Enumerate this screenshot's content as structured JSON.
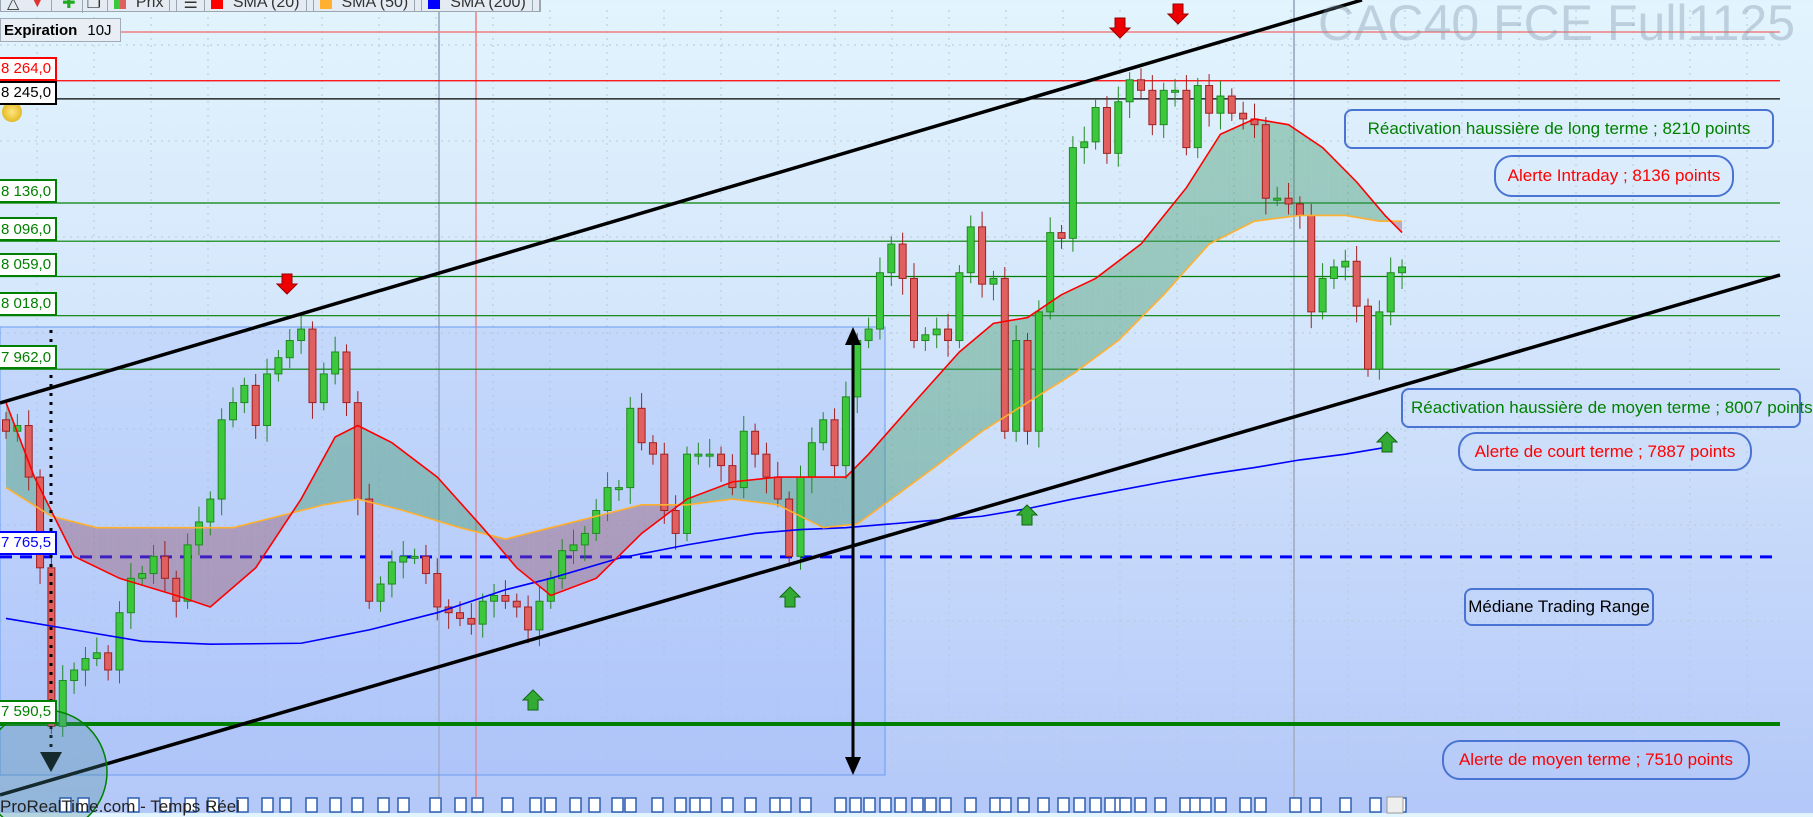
{
  "toolbar": {
    "price_label": "Prix",
    "sma20_label": "SMA (20)",
    "sma50_label": "SMA (50)",
    "sma200_label": "SMA (200)"
  },
  "expiration": {
    "label": "Expiration",
    "value": "10J"
  },
  "watermark": "CAC40 FCE Full1125",
  "footer": "ProRealTime.com - Temps Réel",
  "price_labels": [
    {
      "text": "8 264,0",
      "value": 8264,
      "color": "#ff0000"
    },
    {
      "text": "8 245,0",
      "value": 8245,
      "color": "#000000"
    },
    {
      "text": "8 136,0",
      "value": 8136,
      "color": "#008000"
    },
    {
      "text": "8 096,0",
      "value": 8096,
      "color": "#008000"
    },
    {
      "text": "8 059,0",
      "value": 8059,
      "color": "#008000"
    },
    {
      "text": "8 018,0",
      "value": 8018,
      "color": "#008000"
    },
    {
      "text": "7 962,0",
      "value": 7962,
      "color": "#008000"
    },
    {
      "text": "7 765,5",
      "value": 7765.5,
      "color": "#0000ff"
    },
    {
      "text": "7 590,5",
      "value": 7590.5,
      "color": "#008000"
    }
  ],
  "annotations": [
    {
      "text": "Réactivation haussière de long terme  ; 8210 points",
      "color": "#008000"
    },
    {
      "text": "Alerte Intraday ; 8136 points",
      "color": "#ff0000"
    },
    {
      "text": "Réactivation haussière de moyen terme  ; 8007 points",
      "color": "#008000"
    },
    {
      "text": "Alerte de court terme ; 7887 points",
      "color": "#ff0000"
    },
    {
      "text": "Médiane Trading Range",
      "color": "#000000"
    },
    {
      "text": "Alerte de moyen terme ; 7510 points",
      "color": "#ff0000"
    }
  ],
  "colors": {
    "up": "#3cc83c",
    "down": "#e06060",
    "sma20": "#ff0000",
    "sma50": "#ffb030",
    "sma200": "#0000ff"
  },
  "chart_data": {
    "type": "candlestick",
    "title": "CAC40 FCE Full1125",
    "ylim": [
      7510,
      8290
    ],
    "close": [
      7897,
      7903,
      7849,
      7754,
      7588,
      7636,
      7647,
      7659,
      7665,
      7647,
      7707,
      7743,
      7748,
      7766,
      7743,
      7719,
      7778,
      7802,
      7826,
      7909,
      7927,
      7945,
      7903,
      7957,
      7974,
      7992,
      8004,
      7927,
      7957,
      7980,
      7927,
      7826,
      7719,
      7737,
      7760,
      7766,
      7766,
      7748,
      7713,
      7707,
      7701,
      7695,
      7719,
      7725,
      7719,
      7713,
      7689,
      7719,
      7743,
      7772,
      7778,
      7790,
      7814,
      7838,
      7838,
      7921,
      7885,
      7873,
      7814,
      7790,
      7873,
      7873,
      7873,
      7861,
      7838,
      7897,
      7873,
      7849,
      7826,
      7766,
      7849,
      7885,
      7909,
      7861,
      7933,
      7992,
      8004,
      8063,
      8093,
      8057,
      7992,
      7998,
      8004,
      7992,
      8063,
      8111,
      8051,
      8057,
      7897,
      7992,
      7897,
      8022,
      8105,
      8099,
      8194,
      8200,
      8236,
      8188,
      8242,
      8265,
      8254,
      8218,
      8254,
      8254,
      8194,
      8259,
      8230,
      8248,
      8230,
      8224,
      8218,
      8141,
      8141,
      8135,
      8123,
      8022,
      8057,
      8069,
      8075,
      8028,
      7962,
      8022,
      8063,
      8069
    ],
    "sma20": [
      [
        0,
        7927
      ],
      [
        2.5,
        7849
      ],
      [
        6,
        7766
      ],
      [
        10,
        7743
      ],
      [
        15,
        7725
      ],
      [
        18,
        7713
      ],
      [
        22,
        7754
      ],
      [
        26,
        7826
      ],
      [
        29,
        7891
      ],
      [
        31,
        7903
      ],
      [
        34,
        7885
      ],
      [
        38,
        7849
      ],
      [
        42,
        7796
      ],
      [
        45,
        7754
      ],
      [
        48,
        7725
      ],
      [
        52,
        7743
      ],
      [
        56,
        7790
      ],
      [
        60,
        7826
      ],
      [
        64,
        7844
      ],
      [
        68,
        7849
      ],
      [
        72,
        7849
      ],
      [
        74,
        7849
      ],
      [
        76,
        7873
      ],
      [
        80,
        7927
      ],
      [
        84,
        7980
      ],
      [
        87,
        8010
      ],
      [
        90,
        8016
      ],
      [
        93,
        8040
      ],
      [
        96,
        8057
      ],
      [
        100,
        8093
      ],
      [
        104,
        8152
      ],
      [
        107,
        8208
      ],
      [
        110,
        8224
      ],
      [
        113,
        8218
      ],
      [
        116,
        8194
      ],
      [
        119,
        8158
      ],
      [
        121.5,
        8123
      ],
      [
        123,
        8105
      ]
    ],
    "sma50": [
      [
        0,
        7838
      ],
      [
        4,
        7808
      ],
      [
        8,
        7796
      ],
      [
        12,
        7796
      ],
      [
        16,
        7796
      ],
      [
        20,
        7796
      ],
      [
        24,
        7808
      ],
      [
        28,
        7820
      ],
      [
        31,
        7826
      ],
      [
        35,
        7814
      ],
      [
        40,
        7796
      ],
      [
        44,
        7784
      ],
      [
        48,
        7796
      ],
      [
        52,
        7808
      ],
      [
        56,
        7820
      ],
      [
        60,
        7820
      ],
      [
        64,
        7826
      ],
      [
        68,
        7820
      ],
      [
        72,
        7796
      ],
      [
        75,
        7800
      ],
      [
        78,
        7826
      ],
      [
        82,
        7861
      ],
      [
        86,
        7897
      ],
      [
        90,
        7927
      ],
      [
        94,
        7957
      ],
      [
        98,
        7992
      ],
      [
        102,
        8040
      ],
      [
        106,
        8093
      ],
      [
        110,
        8117
      ],
      [
        114,
        8123
      ],
      [
        118,
        8123
      ],
      [
        121,
        8117
      ],
      [
        123,
        8117
      ]
    ],
    "sma200": [
      [
        0,
        7701
      ],
      [
        6,
        7689
      ],
      [
        12,
        7677
      ],
      [
        18,
        7674
      ],
      [
        26,
        7675
      ],
      [
        32,
        7689
      ],
      [
        38,
        7707
      ],
      [
        44,
        7731
      ],
      [
        48,
        7743
      ],
      [
        54,
        7764
      ],
      [
        60,
        7778
      ],
      [
        66,
        7790
      ],
      [
        70,
        7794
      ],
      [
        74,
        7796
      ],
      [
        78,
        7800
      ],
      [
        82,
        7804
      ],
      [
        86,
        7808
      ],
      [
        90,
        7816
      ],
      [
        94,
        7826
      ],
      [
        98,
        7835
      ],
      [
        102,
        7844
      ],
      [
        106,
        7852
      ],
      [
        110,
        7859
      ],
      [
        114,
        7867
      ],
      [
        118,
        7873
      ],
      [
        122,
        7881
      ]
    ],
    "horizontal_lines": [
      8264,
      8245,
      8136,
      8096,
      8059,
      8018,
      7962,
      7765.5,
      7590.5
    ]
  }
}
